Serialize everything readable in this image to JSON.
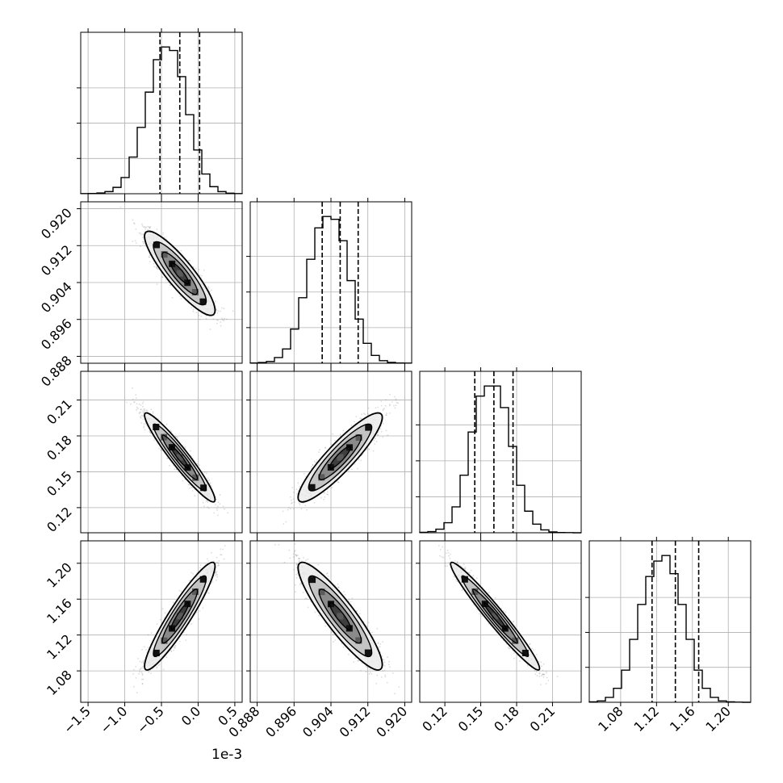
{
  "chart_data": {
    "type": "corner",
    "title": "",
    "offset_text": "1e-3",
    "params": [
      {
        "range": [
          -1.6,
          0.6
        ],
        "ticks": [
          -1.5,
          -1.0,
          -0.5,
          0.0,
          0.5
        ],
        "tick_labels": [
          "−1.5",
          "−1.0",
          "−0.5",
          "0.0",
          "0.5"
        ],
        "quantiles": [
          -0.52,
          -0.25,
          0.02
        ],
        "mean": -0.25,
        "sd": 0.2
      },
      {
        "range": [
          0.8865,
          0.9215
        ],
        "ticks": [
          0.888,
          0.896,
          0.904,
          0.912,
          0.92
        ],
        "tick_labels": [
          "0.888",
          "0.896",
          "0.904",
          "0.912",
          "0.920"
        ],
        "quantiles": [
          0.9021,
          0.906,
          0.9099
        ],
        "mean": 0.906,
        "sd": 0.0038
      },
      {
        "range": [
          0.099,
          0.234
        ],
        "ticks": [
          0.12,
          0.15,
          0.18,
          0.21
        ],
        "tick_labels": [
          "0.12",
          "0.15",
          "0.18",
          "0.21"
        ],
        "quantiles": [
          0.145,
          0.161,
          0.177
        ],
        "mean": 0.162,
        "sd": 0.0155
      },
      {
        "range": [
          1.045,
          1.225
        ],
        "ticks": [
          1.08,
          1.12,
          1.16,
          1.2
        ],
        "tick_labels": [
          "1.08",
          "1.12",
          "1.16",
          "1.20"
        ],
        "quantiles": [
          1.115,
          1.141,
          1.167
        ],
        "mean": 1.141,
        "sd": 0.025
      }
    ],
    "histograms": [
      {
        "bins": [
          -1.6,
          -1.49,
          -1.38,
          -1.27,
          -1.16,
          -1.05,
          -0.94,
          -0.83,
          -0.72,
          -0.61,
          -0.5,
          -0.39,
          -0.28,
          -0.17,
          -0.06,
          0.05,
          0.16,
          0.27,
          0.38,
          0.49,
          0.6
        ],
        "counts": [
          1,
          2,
          5,
          15,
          45,
          115,
          260,
          470,
          720,
          950,
          1040,
          1015,
          830,
          560,
          310,
          140,
          50,
          15,
          4,
          1
        ]
      },
      {
        "bins": [
          0.8865,
          0.88825,
          0.89,
          0.89175,
          0.8935,
          0.89525,
          0.897,
          0.89875,
          0.9005,
          0.90225,
          0.904,
          0.90575,
          0.9075,
          0.90925,
          0.911,
          0.91275,
          0.9145,
          0.91625,
          0.918,
          0.91975,
          0.9215
        ],
        "counts": [
          2,
          5,
          12,
          40,
          100,
          240,
          460,
          730,
          950,
          1030,
          1010,
          860,
          580,
          310,
          140,
          55,
          18,
          6,
          2,
          1
        ]
      },
      {
        "bins": [
          0.099,
          0.10575,
          0.1125,
          0.11925,
          0.126,
          0.13275,
          0.1395,
          0.14625,
          0.153,
          0.15975,
          0.1665,
          0.17325,
          0.18,
          0.18675,
          0.1935,
          0.20025,
          0.207,
          0.21375,
          0.2205,
          0.22725,
          0.234
        ],
        "counts": [
          3,
          8,
          25,
          70,
          180,
          400,
          700,
          950,
          1020,
          1020,
          870,
          600,
          330,
          150,
          60,
          20,
          6,
          2,
          1,
          0
        ]
      },
      {
        "bins": [
          1.045,
          1.054,
          1.063,
          1.072,
          1.081,
          1.09,
          1.099,
          1.108,
          1.117,
          1.126,
          1.135,
          1.144,
          1.153,
          1.162,
          1.171,
          1.18,
          1.189,
          1.198,
          1.207,
          1.216,
          1.225
        ],
        "counts": [
          3,
          10,
          35,
          100,
          230,
          450,
          700,
          900,
          1010,
          1050,
          920,
          700,
          450,
          230,
          100,
          35,
          10,
          3,
          1,
          0
        ]
      }
    ],
    "pairs": [
      {
        "x": 0,
        "y": 1,
        "rho": -0.88
      },
      {
        "x": 0,
        "y": 2,
        "rho": -0.95
      },
      {
        "x": 1,
        "y": 2,
        "rho": 0.9
      },
      {
        "x": 0,
        "y": 3,
        "rho": 0.93
      },
      {
        "x": 1,
        "y": 3,
        "rho": -0.9
      },
      {
        "x": 2,
        "y": 3,
        "rho": -0.97
      }
    ],
    "contour_levels_sigma": [
      0.5,
      1.0,
      1.5,
      2.0
    ],
    "grid": true,
    "colors": {
      "line": "#000000",
      "grid": "#b0b0b0",
      "scatter": "#808080"
    }
  }
}
